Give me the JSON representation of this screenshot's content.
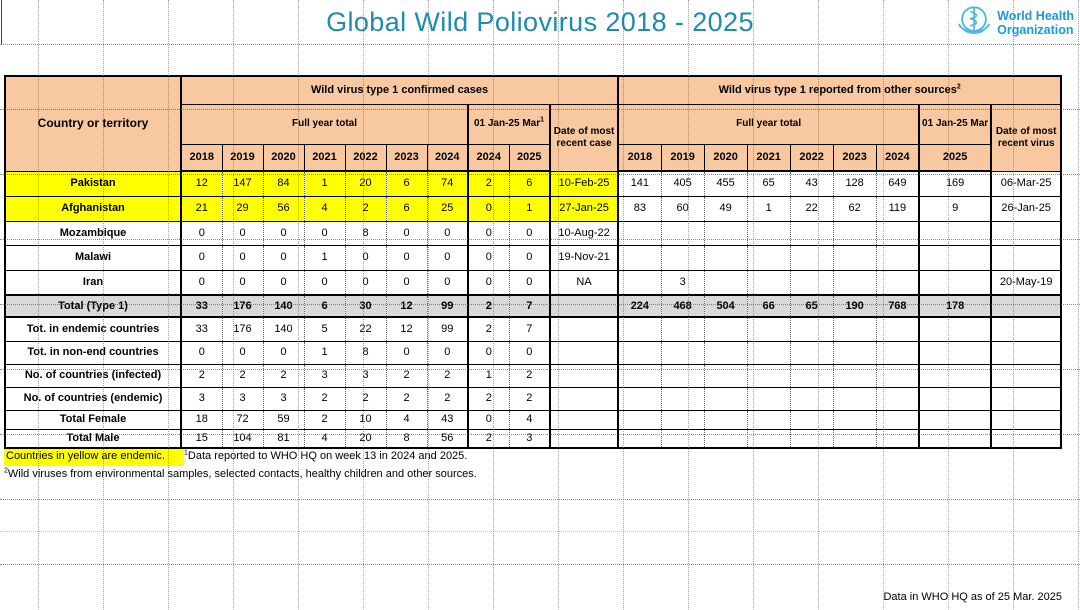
{
  "colors": {
    "title": "#1E8CAA",
    "header_fill": "#F8C9A1",
    "endemic_fill": "#FFFF00",
    "total_fill": "#D9D9D9",
    "who_blue": "#199CD8",
    "who_emblem": "#4FB8E0"
  },
  "title": "Global Wild Poliovirus 2018 - 2025",
  "logo": {
    "line1": "World Health",
    "line2": "Organization"
  },
  "table": {
    "corner_header": "Country or territory",
    "sections": [
      {
        "title": "Wild virus type 1 confirmed cases",
        "title_sup": "",
        "full_year_label": "Full year total",
        "years": [
          "2018",
          "2019",
          "2020",
          "2021",
          "2022",
          "2023",
          "2024"
        ],
        "period_label": "01 Jan-25 Mar",
        "period_sup": "1",
        "period_years": [
          "2024",
          "2025"
        ],
        "date_label": "Date of most recent case"
      },
      {
        "title": "Wild virus type 1 reported from other sources",
        "title_sup": "2",
        "full_year_label": "Full year total",
        "years": [
          "2018",
          "2019",
          "2020",
          "2021",
          "2022",
          "2023",
          "2024"
        ],
        "period_label": "01 Jan-25 Mar",
        "period_sup": "",
        "period_years": [
          "2025"
        ],
        "date_label": "Date of most recent virus"
      }
    ],
    "rows": [
      {
        "label": "Pakistan",
        "type": "endemic",
        "cases": [
          "12",
          "147",
          "84",
          "1",
          "20",
          "6",
          "74",
          "2",
          "6"
        ],
        "case_date": "10-Feb-25",
        "other": [
          "141",
          "405",
          "455",
          "65",
          "43",
          "128",
          "649",
          "169"
        ],
        "virus_date": "06-Mar-25"
      },
      {
        "label": "Afghanistan",
        "type": "endemic",
        "cases": [
          "21",
          "29",
          "56",
          "4",
          "2",
          "6",
          "25",
          "0",
          "1"
        ],
        "case_date": "27-Jan-25",
        "other": [
          "83",
          "60",
          "49",
          "1",
          "22",
          "62",
          "119",
          "9"
        ],
        "virus_date": "26-Jan-25"
      },
      {
        "label": "Mozambique",
        "type": "country",
        "cases": [
          "0",
          "0",
          "0",
          "0",
          "8",
          "0",
          "0",
          "0",
          "0"
        ],
        "case_date": "10-Aug-22",
        "other": [
          "",
          "",
          "",
          "",
          "",
          "",
          "",
          ""
        ],
        "virus_date": ""
      },
      {
        "label": "Malawi",
        "type": "country",
        "cases": [
          "0",
          "0",
          "0",
          "1",
          "0",
          "0",
          "0",
          "0",
          "0"
        ],
        "case_date": "19-Nov-21",
        "other": [
          "",
          "",
          "",
          "",
          "",
          "",
          "",
          ""
        ],
        "virus_date": ""
      },
      {
        "label": "Iran",
        "type": "country",
        "cases": [
          "0",
          "0",
          "0",
          "0",
          "0",
          "0",
          "0",
          "0",
          "0"
        ],
        "case_date": "NA",
        "other": [
          "",
          "3",
          "",
          "",
          "",
          "",
          "",
          ""
        ],
        "virus_date": "20-May-19"
      },
      {
        "label": "Total (Type 1)",
        "type": "total",
        "cases": [
          "33",
          "176",
          "140",
          "6",
          "30",
          "12",
          "99",
          "2",
          "7"
        ],
        "case_date": "",
        "other": [
          "224",
          "468",
          "504",
          "66",
          "65",
          "190",
          "768",
          "178"
        ],
        "virus_date": ""
      },
      {
        "label": "Tot. in endemic countries",
        "type": "stat",
        "cases": [
          "33",
          "176",
          "140",
          "5",
          "22",
          "12",
          "99",
          "2",
          "7"
        ],
        "case_date": "",
        "other": [
          "",
          "",
          "",
          "",
          "",
          "",
          "",
          ""
        ],
        "virus_date": ""
      },
      {
        "label": "Tot. in non-end countries",
        "type": "stat",
        "cases": [
          "0",
          "0",
          "0",
          "1",
          "8",
          "0",
          "0",
          "0",
          "0"
        ],
        "case_date": "",
        "other": [
          "",
          "",
          "",
          "",
          "",
          "",
          "",
          ""
        ],
        "virus_date": ""
      },
      {
        "label": "No. of countries (infected)",
        "type": "stat",
        "cases": [
          "2",
          "2",
          "2",
          "3",
          "3",
          "2",
          "2",
          "1",
          "2"
        ],
        "case_date": "",
        "other": [
          "",
          "",
          "",
          "",
          "",
          "",
          "",
          ""
        ],
        "virus_date": ""
      },
      {
        "label": "No. of countries (endemic)",
        "type": "stat",
        "cases": [
          "3",
          "3",
          "3",
          "2",
          "2",
          "2",
          "2",
          "2",
          "2"
        ],
        "case_date": "",
        "other": [
          "",
          "",
          "",
          "",
          "",
          "",
          "",
          ""
        ],
        "virus_date": ""
      },
      {
        "label": "Total Female",
        "type": "stat",
        "cases": [
          "18",
          "72",
          "59",
          "2",
          "10",
          "4",
          "43",
          "0",
          "4"
        ],
        "case_date": "",
        "other": [
          "",
          "",
          "",
          "",
          "",
          "",
          "",
          ""
        ],
        "virus_date": ""
      },
      {
        "label": "Total Male",
        "type": "stat",
        "cases": [
          "15",
          "104",
          "81",
          "4",
          "20",
          "8",
          "56",
          "2",
          "3"
        ],
        "case_date": "",
        "other": [
          "",
          "",
          "",
          "",
          "",
          "",
          "",
          ""
        ],
        "virus_date": ""
      }
    ]
  },
  "footnotes": {
    "endemic_note": "Countries in yellow are endemic.",
    "note1_sup": "1",
    "note1": "Data reported to WHO HQ on week 13 in 2024 and 2025.",
    "note2_sup": "2",
    "note2": "Wild viruses from environmental samples, selected contacts, healthy children and other sources."
  },
  "footer": {
    "as_of": "Data in WHO HQ as of 25 Mar. 2025"
  }
}
